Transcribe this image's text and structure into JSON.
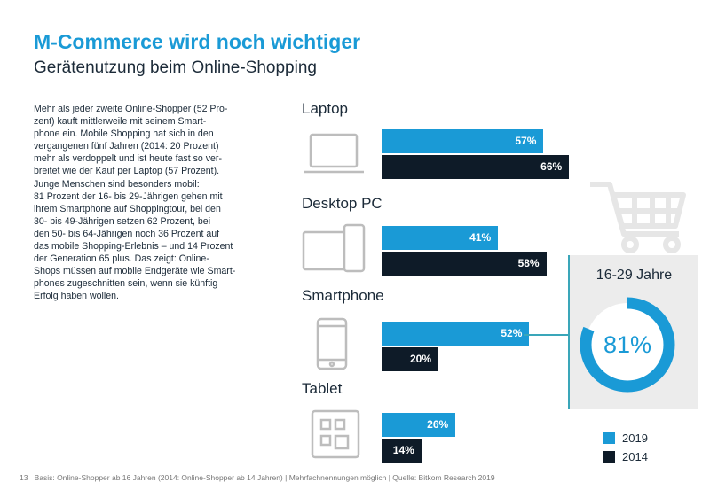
{
  "title": "M-Commerce wird noch wichtiger",
  "subtitle": "Gerätenutzung beim Online-Shopping",
  "body_lines": [
    "Mehr als jeder zweite Online-Shopper (52 Pro-",
    "zent) kauft mittlerweile mit seinem Smart-",
    "phone ein. Mobile Shopping hat sich in den",
    "vergangenen fünf Jahren (2014: 20 Prozent)",
    "mehr als verdoppelt und ist heute fast so ver-",
    "breitet wie der Kauf per Laptop (57 Prozent).",
    "Junge Menschen sind besonders mobil:",
    "81 Prozent der 16- bis 29-Jährigen gehen mit",
    "ihrem Smartphone auf Shoppingtour, bei den",
    "30- bis 49-Jährigen setzen 62 Prozent, bei",
    "den 50- bis 64-Jährigen noch 36 Prozent auf",
    "das mobile Shopping-Erlebnis – und 14 Prozent",
    "der Generation 65 plus. Das zeigt: Online-",
    "Shops müssen auf mobile Endgeräte wie Smart-",
    "phones zugeschnitten sein, wenn sie künftig",
    "Erfolg haben wollen."
  ],
  "footer": {
    "page_number": "13",
    "note": "Basis: Online-Shopper ab 16 Jahren (2014: Online-Shopper ab 14 Jahren) | Mehrfachnennungen möglich | Quelle: Bitkom Research 2019"
  },
  "colors": {
    "series_2019": "#1a9ad6",
    "series_2014": "#0e1b28",
    "title": "#1a9ad6",
    "panel": "#ececec",
    "accent_line": "#3aa6b9"
  },
  "chart_data": [
    {
      "type": "bar",
      "orientation": "horizontal",
      "categories": [
        "Laptop",
        "Desktop PC",
        "Smartphone",
        "Tablet"
      ],
      "category_icons": [
        "laptop-icon",
        "desktop-pc-icon",
        "smartphone-icon",
        "tablet-icon"
      ],
      "series": [
        {
          "name": "2019",
          "values": [
            57,
            41,
            52,
            26
          ],
          "labels": [
            "57%",
            "41%",
            "52%",
            "26%"
          ]
        },
        {
          "name": "2014",
          "values": [
            66,
            58,
            20,
            14
          ],
          "labels": [
            "66%",
            "58%",
            "20%",
            "14%"
          ]
        }
      ],
      "xlim": [
        0,
        100
      ],
      "unit": "%",
      "legend": {
        "placement": "bottom-right",
        "entries": [
          "2019",
          "2014"
        ]
      },
      "grid": false
    },
    {
      "type": "pie",
      "variant": "donut",
      "title": "16-29 Jahre",
      "value": 81,
      "label": "81%",
      "decor_icon": "shopping-cart-icon"
    }
  ]
}
